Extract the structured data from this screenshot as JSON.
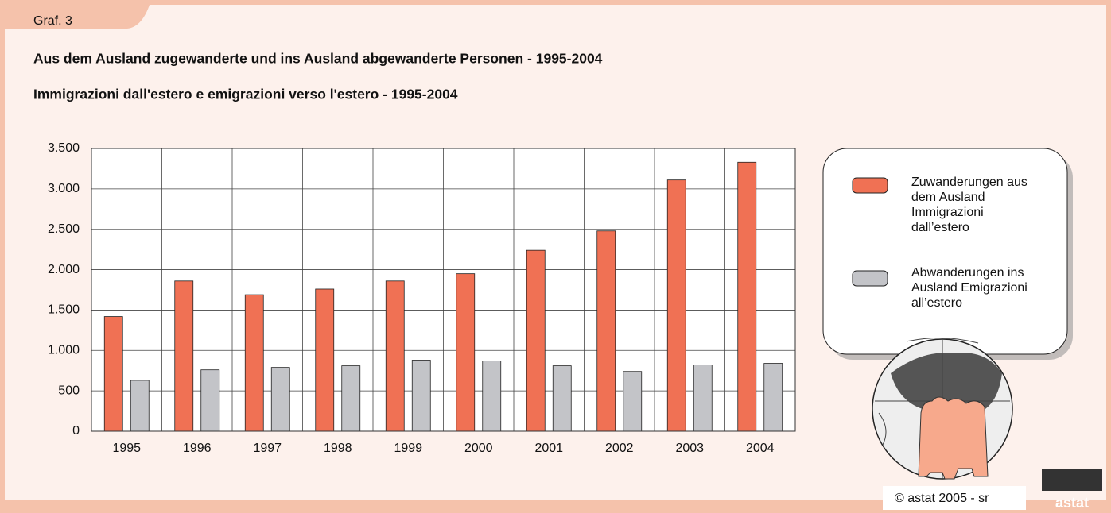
{
  "page": {
    "tab": "Graf. 3",
    "credit": "© astat 2005 - sr",
    "logo": "astat"
  },
  "chart_data": {
    "type": "bar",
    "title": "Aus dem Ausland zugewanderte und ins Ausland abgewanderte Personen - 1995-2004",
    "subtitle": "Immigrazioni dall'estero e emigrazioni verso l'estero - 1995-2004",
    "categories": [
      "1995",
      "1996",
      "1997",
      "1998",
      "1999",
      "2000",
      "2001",
      "2002",
      "2003",
      "2004"
    ],
    "series": [
      {
        "name": "Zuwanderungen aus dem Ausland Immigrazioni dall’estero",
        "color": "#f07154",
        "values": [
          1420,
          1860,
          1690,
          1760,
          1860,
          1950,
          2240,
          2480,
          3110,
          3330
        ]
      },
      {
        "name": "Abwanderungen ins Ausland Emigrazioni all’estero",
        "color": "#c3c4c8",
        "values": [
          630,
          760,
          790,
          810,
          880,
          870,
          810,
          740,
          820,
          840
        ]
      }
    ],
    "ylim": [
      0,
      3500
    ],
    "yticks": [
      0,
      500,
      {
        "value": 1000,
        "label": "1.000"
      },
      {
        "value": 1500,
        "label": "1.500"
      },
      {
        "value": 2000,
        "label": "2.000"
      },
      {
        "value": 2500,
        "label": "2.500"
      },
      {
        "value": 3000,
        "label": "3.000"
      },
      {
        "value": 3500,
        "label": "3.500"
      }
    ],
    "grid": true
  }
}
